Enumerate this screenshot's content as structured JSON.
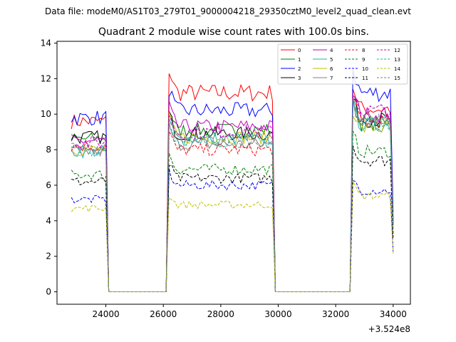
{
  "chart_data": {
    "type": "line",
    "suptitle": "Data file: modeM0/AS1T03_279T01_9000004218_29350cztM0_level2_quad_clean.evt",
    "title": "Quadrant 2 module wise count rates with 100.0s bins.",
    "xlabel": "",
    "ylabel": "",
    "x_offset_label": "+3.524e8",
    "xlim": [
      22300,
      34600
    ],
    "ylim": [
      -0.7,
      14.1
    ],
    "xticks": [
      24000,
      26000,
      28000,
      30000,
      32000,
      34000
    ],
    "xtick_labels": [
      "24000",
      "26000",
      "28000",
      "30000",
      "32000",
      "34000"
    ],
    "yticks": [
      0,
      2,
      4,
      6,
      8,
      10,
      12,
      14
    ],
    "ytick_labels": [
      "0",
      "2",
      "4",
      "6",
      "8",
      "10",
      "12",
      "14"
    ],
    "legend_position": "top-right",
    "segments": [
      {
        "start": 22800,
        "end": 24000
      },
      {
        "start": 26200,
        "end": 29800
      },
      {
        "start": 32600,
        "end": 34000
      }
    ],
    "gaps": [
      {
        "start": 24100,
        "end": 26100
      },
      {
        "start": 29900,
        "end": 32500
      }
    ],
    "series": [
      {
        "name": "0",
        "color": "#ff0000",
        "dash": "solid",
        "levels": [
          9.6,
          11.2,
          10.3
        ]
      },
      {
        "name": "1",
        "color": "#008000",
        "dash": "solid",
        "levels": [
          8.6,
          9.1,
          9.5
        ]
      },
      {
        "name": "2",
        "color": "#0000ff",
        "dash": "solid",
        "levels": [
          9.8,
          10.2,
          11.2
        ]
      },
      {
        "name": "3",
        "color": "#000000",
        "dash": "solid",
        "levels": [
          8.7,
          8.9,
          9.7
        ]
      },
      {
        "name": "4",
        "color": "#c000c0",
        "dash": "solid",
        "levels": [
          8.5,
          9.3,
          10.0
        ]
      },
      {
        "name": "5",
        "color": "#20b2aa",
        "dash": "solid",
        "levels": [
          7.9,
          8.6,
          9.4
        ]
      },
      {
        "name": "6",
        "color": "#c0c000",
        "dash": "solid",
        "levels": [
          8.0,
          8.7,
          9.2
        ]
      },
      {
        "name": "7",
        "color": "#808080",
        "dash": "solid",
        "levels": [
          7.9,
          8.3,
          9.8
        ]
      },
      {
        "name": "8",
        "color": "#ff0000",
        "dash": "dashed",
        "levels": [
          8.2,
          8.0,
          9.6
        ]
      },
      {
        "name": "9",
        "color": "#008000",
        "dash": "dashed",
        "levels": [
          6.6,
          6.9,
          7.9
        ]
      },
      {
        "name": "10",
        "color": "#0000ff",
        "dash": "dashed",
        "levels": [
          5.2,
          6.0,
          5.7
        ]
      },
      {
        "name": "11",
        "color": "#000000",
        "dash": "dashed",
        "levels": [
          6.2,
          6.4,
          7.4
        ]
      },
      {
        "name": "12",
        "color": "#c000c0",
        "dash": "dashed",
        "levels": [
          8.4,
          9.0,
          10.2
        ]
      },
      {
        "name": "13",
        "color": "#20b2aa",
        "dash": "dashed",
        "levels": [
          8.0,
          8.5,
          9.5
        ]
      },
      {
        "name": "14",
        "color": "#c0c000",
        "dash": "dashed",
        "levels": [
          4.7,
          4.9,
          5.4
        ]
      },
      {
        "name": "15",
        "color": "#808080",
        "dash": "dashed",
        "levels": [
          8.1,
          8.5,
          9.6
        ]
      }
    ]
  }
}
